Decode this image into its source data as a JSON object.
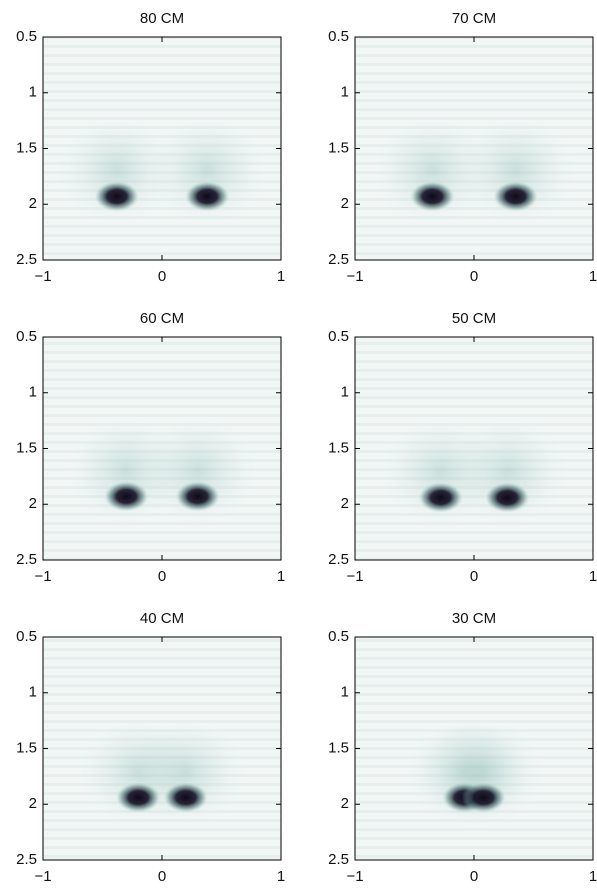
{
  "chart_data": [
    {
      "type": "image",
      "title": "80 CM",
      "x": [
        -0.38,
        0.38
      ],
      "values": [
        1.93,
        1.93
      ],
      "xlim": [
        -1,
        1
      ],
      "ylim": [
        2.5,
        0.5
      ],
      "xticks": [
        {
          "value": -1,
          "label": "−1"
        },
        0,
        1
      ],
      "yticks": [
        0.5,
        1,
        1.5,
        2,
        2.5
      ]
    },
    {
      "type": "image",
      "title": "70 CM",
      "x": [
        -0.35,
        0.35
      ],
      "values": [
        1.93,
        1.93
      ],
      "xlim": [
        -1,
        1
      ],
      "ylim": [
        2.5,
        0.5
      ],
      "xticks": [
        {
          "value": -1,
          "label": "−1"
        },
        0,
        1
      ],
      "yticks": [
        0.5,
        1,
        1.5,
        2,
        2.5
      ]
    },
    {
      "type": "image",
      "title": "60 CM",
      "x": [
        -0.3,
        0.3
      ],
      "values": [
        1.93,
        1.93
      ],
      "xlim": [
        -1,
        1
      ],
      "ylim": [
        2.5,
        0.5
      ],
      "xticks": [
        {
          "value": -1,
          "label": "−1"
        },
        0,
        1
      ],
      "yticks": [
        0.5,
        1,
        1.5,
        2,
        2.5
      ]
    },
    {
      "type": "image",
      "title": "50 CM",
      "x": [
        -0.28,
        0.28
      ],
      "values": [
        1.94,
        1.94
      ],
      "xlim": [
        -1,
        1
      ],
      "ylim": [
        2.5,
        0.5
      ],
      "xticks": [
        {
          "value": -1,
          "label": "−1"
        },
        0,
        1
      ],
      "yticks": [
        0.5,
        1,
        1.5,
        2,
        2.5
      ]
    },
    {
      "type": "image",
      "title": "40 CM",
      "x": [
        -0.2,
        0.2
      ],
      "values": [
        1.94,
        1.94
      ],
      "xlim": [
        -1,
        1
      ],
      "ylim": [
        2.5,
        0.5
      ],
      "xticks": [
        {
          "value": -1,
          "label": "−1"
        },
        0,
        1
      ],
      "yticks": [
        0.5,
        1,
        1.5,
        2,
        2.5
      ]
    },
    {
      "type": "image",
      "title": "30 CM",
      "x": [
        -0.08,
        0.08
      ],
      "values": [
        1.94,
        1.94
      ],
      "xlim": [
        -1,
        1
      ],
      "ylim": [
        2.5,
        0.5
      ],
      "xticks": [
        {
          "value": -1,
          "label": "−1"
        },
        0,
        1
      ],
      "yticks": [
        0.5,
        1,
        1.5,
        2,
        2.5
      ]
    }
  ]
}
